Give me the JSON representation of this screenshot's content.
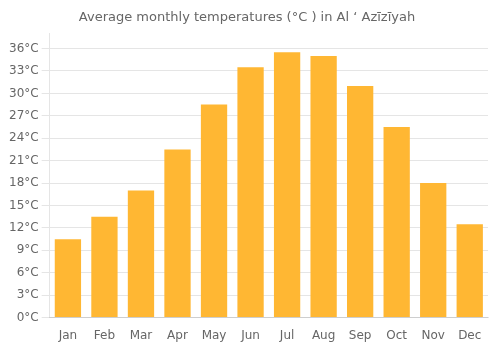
{
  "chart_data": {
    "type": "bar",
    "title": "Average monthly temperatures (°C ) in Al ‘ Azīzīyah",
    "categories": [
      "Jan",
      "Feb",
      "Mar",
      "Apr",
      "May",
      "Jun",
      "Jul",
      "Aug",
      "Sep",
      "Oct",
      "Nov",
      "Dec"
    ],
    "values": [
      10.5,
      13.5,
      17.0,
      22.5,
      28.5,
      33.5,
      35.5,
      35.0,
      31.0,
      25.5,
      18.0,
      12.5
    ],
    "color": "#FFB733",
    "ylim": [
      0,
      38
    ],
    "yticks": [
      {
        "value": 0,
        "label": "0°C"
      },
      {
        "value": 3,
        "label": "3°C"
      },
      {
        "value": 6,
        "label": "6°C"
      },
      {
        "value": 9,
        "label": "9°C"
      },
      {
        "value": 12,
        "label": "12°C"
      },
      {
        "value": 15,
        "label": "15°C"
      },
      {
        "value": 18,
        "label": "18°C"
      },
      {
        "value": 21,
        "label": "21°C"
      },
      {
        "value": 24,
        "label": "24°C"
      },
      {
        "value": 27,
        "label": "27°C"
      },
      {
        "value": 30,
        "label": "30°C"
      },
      {
        "value": 33,
        "label": "33°C"
      },
      {
        "value": 36,
        "label": "36°C"
      }
    ],
    "grid": true
  }
}
